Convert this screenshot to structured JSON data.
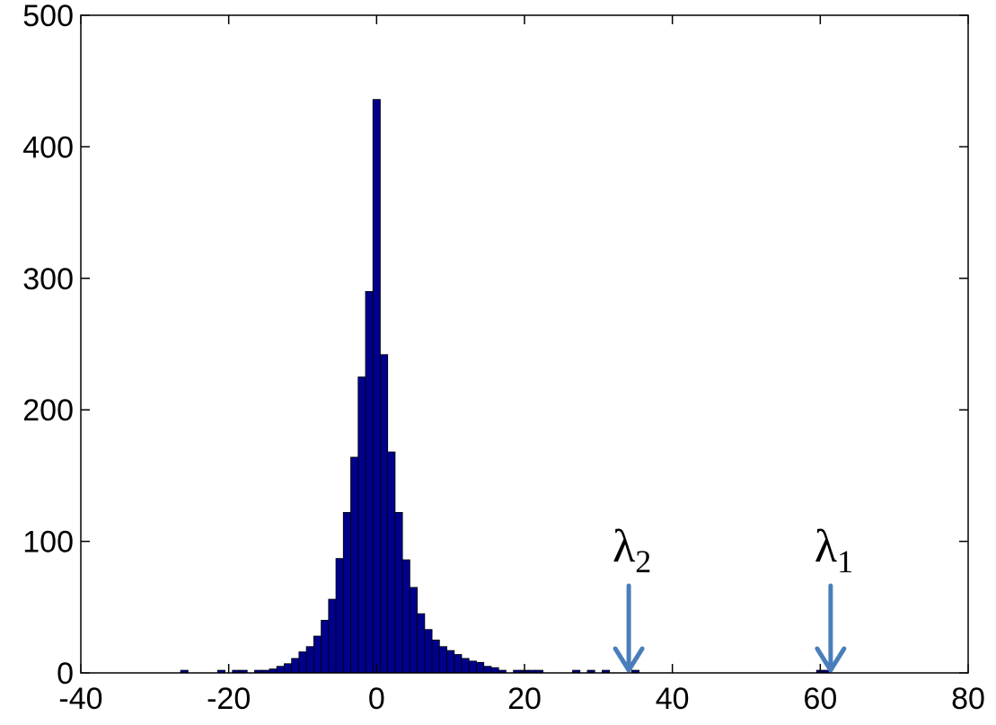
{
  "chart_data": {
    "type": "histogram",
    "bins": [
      -26.5,
      -25.5,
      -24.5,
      -23.5,
      -22.5,
      -21.5,
      -20.5,
      -19.5,
      -18.5,
      -17.5,
      -16.5,
      -15.5,
      -14.5,
      -13.5,
      -12.5,
      -11.5,
      -10.5,
      -9.5,
      -8.5,
      -7.5,
      -6.5,
      -5.5,
      -4.5,
      -3.5,
      -2.5,
      -1.5,
      -0.5,
      0.5,
      1.5,
      2.5,
      3.5,
      4.5,
      5.5,
      6.5,
      7.5,
      8.5,
      9.5,
      10.5,
      11.5,
      12.5,
      13.5,
      14.5,
      15.5,
      16.5,
      17.5,
      18.5,
      19.5,
      20.5,
      21.5,
      22.5,
      23.5,
      24.5,
      25.5,
      26.5,
      27.5,
      28.5,
      29.5,
      30.5,
      31.5,
      32.5,
      33.5,
      34.5,
      35.5,
      36.5,
      37.5,
      38.5,
      39.5,
      40.5,
      41.5,
      42.5,
      43.5,
      44.5,
      45.5,
      46.5,
      47.5,
      48.5,
      49.5,
      50.5,
      51.5,
      52.5,
      53.5,
      54.5,
      55.5,
      56.5,
      57.5,
      58.5,
      59.5,
      60.5,
      61.5,
      62.5
    ],
    "values": [
      2,
      0,
      0,
      0,
      0,
      2,
      0,
      2,
      2,
      0,
      2,
      2,
      3,
      5,
      7,
      11,
      16,
      20,
      28,
      40,
      56,
      87,
      122,
      164,
      225,
      290,
      436,
      242,
      168,
      122,
      86,
      65,
      45,
      33,
      25,
      20,
      17,
      14,
      11,
      9,
      8,
      5,
      4,
      2,
      0,
      2,
      2,
      2,
      2,
      0,
      0,
      0,
      0,
      2,
      0,
      2,
      0,
      2,
      0,
      0,
      0,
      2,
      0,
      0,
      0,
      0,
      0,
      0,
      0,
      0,
      0,
      0,
      0,
      0,
      0,
      0,
      0,
      0,
      0,
      0,
      0,
      0,
      0,
      0,
      0,
      0,
      2,
      2,
      0
    ],
    "color": "#00008b",
    "xlim": [
      -40,
      80
    ],
    "xticks": [
      -40,
      -20,
      0,
      20,
      40,
      60,
      80
    ],
    "ylim": [
      0,
      500
    ],
    "yticks": [
      0,
      100,
      200,
      300,
      400,
      500
    ],
    "grid": false,
    "annotations": [
      {
        "text": "λ",
        "subscript": "2",
        "x": 34.1,
        "color": "#4a7ebb"
      },
      {
        "text": "λ",
        "subscript": "1",
        "x": 61.4,
        "color": "#4a7ebb"
      }
    ]
  }
}
